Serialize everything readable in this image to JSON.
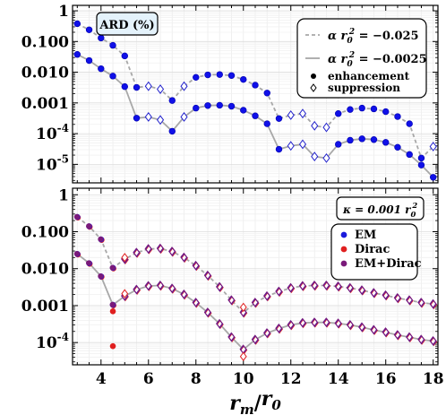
{
  "chart_data": [
    {
      "type": "line",
      "panel": "top",
      "badge": "ARD (%)",
      "y_scale": "log",
      "xlim": [
        2.8,
        18.2
      ],
      "ylim": [
        2.5e-06,
        1.5
      ],
      "y_ticks": [
        {
          "v": 1,
          "label": "1"
        },
        {
          "v": 0.1,
          "label": "0.100"
        },
        {
          "v": 0.01,
          "label": "0.010"
        },
        {
          "v": 0.001,
          "label": "0.001"
        },
        {
          "v": 0.0001,
          "label": "10",
          "exp": "-4"
        },
        {
          "v": 1e-05,
          "label": "10",
          "exp": "-5"
        }
      ],
      "grid": true,
      "legend_position": "top-right",
      "legend": {
        "dashed_label_lhs": "α r",
        "dashed_label_rhs": " = −0.025",
        "solid_label_lhs": "α r",
        "solid_label_rhs": " = −0.0025",
        "sub": "0",
        "sup": "2",
        "filled_label": "enhancement",
        "open_label": "suppression"
      },
      "series": [
        {
          "style": "dashed",
          "points": [
            [
              3,
              0.38,
              "e"
            ],
            [
              3.5,
              0.24,
              "e"
            ],
            [
              4,
              0.13,
              "e"
            ],
            [
              4.5,
              0.075,
              "e"
            ],
            [
              5,
              0.034,
              "e"
            ],
            [
              5.5,
              0.0032,
              "e"
            ],
            [
              6,
              0.0035,
              "s"
            ],
            [
              6.5,
              0.0028,
              "s"
            ],
            [
              7,
              0.0012,
              "e"
            ],
            [
              7.5,
              0.0035,
              "s"
            ],
            [
              8,
              0.0068,
              "e"
            ],
            [
              8.5,
              0.0082,
              "e"
            ],
            [
              9,
              0.0084,
              "e"
            ],
            [
              9.5,
              0.0078,
              "e"
            ],
            [
              10,
              0.0058,
              "e"
            ],
            [
              10.5,
              0.0038,
              "e"
            ],
            [
              11,
              0.0021,
              "e"
            ],
            [
              11.5,
              0.00031,
              "e"
            ],
            [
              12,
              0.0004,
              "s"
            ],
            [
              12.5,
              0.00045,
              "s"
            ],
            [
              13,
              0.00018,
              "s"
            ],
            [
              13.5,
              0.00016,
              "s"
            ],
            [
              14,
              0.00045,
              "e"
            ],
            [
              14.5,
              0.00061,
              "e"
            ],
            [
              15,
              0.00068,
              "e"
            ],
            [
              15.5,
              0.00064,
              "e"
            ],
            [
              16,
              0.00052,
              "e"
            ],
            [
              16.5,
              0.00036,
              "e"
            ],
            [
              17,
              0.00021,
              "e"
            ],
            [
              17.5,
              1.6e-05,
              "e"
            ],
            [
              18,
              3.8e-05,
              "s"
            ]
          ]
        },
        {
          "style": "solid",
          "points": [
            [
              3,
              0.038,
              "e"
            ],
            [
              3.5,
              0.024,
              "e"
            ],
            [
              4,
              0.013,
              "e"
            ],
            [
              4.5,
              0.0075,
              "e"
            ],
            [
              5,
              0.0034,
              "e"
            ],
            [
              5.5,
              0.00032,
              "e"
            ],
            [
              6,
              0.00035,
              "s"
            ],
            [
              6.5,
              0.00028,
              "s"
            ],
            [
              7,
              0.00012,
              "e"
            ],
            [
              7.5,
              0.00035,
              "s"
            ],
            [
              8,
              0.00068,
              "e"
            ],
            [
              8.5,
              0.00082,
              "e"
            ],
            [
              9,
              0.00084,
              "e"
            ],
            [
              9.5,
              0.00078,
              "e"
            ],
            [
              10,
              0.00058,
              "e"
            ],
            [
              10.5,
              0.00038,
              "e"
            ],
            [
              11,
              0.00021,
              "e"
            ],
            [
              11.5,
              3.1e-05,
              "e"
            ],
            [
              12,
              4e-05,
              "s"
            ],
            [
              12.5,
              4.5e-05,
              "s"
            ],
            [
              13,
              1.8e-05,
              "s"
            ],
            [
              13.5,
              1.6e-05,
              "s"
            ],
            [
              14,
              4.5e-05,
              "e"
            ],
            [
              14.5,
              6.1e-05,
              "e"
            ],
            [
              15,
              6.8e-05,
              "e"
            ],
            [
              15.5,
              6.4e-05,
              "e"
            ],
            [
              16,
              5.2e-05,
              "e"
            ],
            [
              16.5,
              3.6e-05,
              "e"
            ],
            [
              17,
              2.1e-05,
              "e"
            ],
            [
              17.5,
              9.5e-06,
              "e"
            ],
            [
              18,
              3.8e-06,
              "e"
            ]
          ]
        }
      ]
    },
    {
      "type": "line",
      "panel": "bottom",
      "y_scale": "log",
      "xlim": [
        2.8,
        18.2
      ],
      "ylim": [
        2.5e-05,
        1.5
      ],
      "y_ticks": [
        {
          "v": 1,
          "label": "1"
        },
        {
          "v": 0.1,
          "label": "0.100"
        },
        {
          "v": 0.01,
          "label": "0.010"
        },
        {
          "v": 0.001,
          "label": "0.001"
        },
        {
          "v": 0.0001,
          "label": "10",
          "exp": "-4"
        }
      ],
      "x_ticks": [
        4,
        6,
        8,
        10,
        12,
        14,
        16,
        18
      ],
      "xlabel_main": "r",
      "xlabel_sub": "m",
      "xlabel_den": "r",
      "xlabel_den_sub": "0",
      "grid": true,
      "legend_position": "top-right",
      "kappa_box": {
        "lhs": "κ = 0.001 r",
        "sub": "0",
        "sup": "2"
      },
      "legend": [
        {
          "name": "EM",
          "color": "#1a1adb"
        },
        {
          "name": "Dirac",
          "color": "#e02020"
        },
        {
          "name": "EM+Dirac",
          "color": "#7a1a7a"
        }
      ],
      "series": [
        {
          "style": "dashed",
          "points": [
            [
              3,
              0.25,
              "f"
            ],
            [
              3.5,
              0.14,
              "f"
            ],
            [
              4,
              0.062,
              "f"
            ],
            [
              4.5,
              0.0105,
              "f"
            ],
            [
              5,
              0.018,
              "o"
            ],
            [
              5.5,
              0.027,
              "o"
            ],
            [
              6,
              0.034,
              "o"
            ],
            [
              6.5,
              0.035,
              "o"
            ],
            [
              7,
              0.029,
              "o"
            ],
            [
              7.5,
              0.02,
              "o"
            ],
            [
              8,
              0.012,
              "o"
            ],
            [
              8.5,
              0.0065,
              "o"
            ],
            [
              9,
              0.0032,
              "o"
            ],
            [
              9.5,
              0.0014,
              "o"
            ],
            [
              10,
              0.00065,
              "o"
            ],
            [
              10.5,
              0.0012,
              "o"
            ],
            [
              11,
              0.0018,
              "o"
            ],
            [
              11.5,
              0.0024,
              "o"
            ],
            [
              12,
              0.003,
              "o"
            ],
            [
              12.5,
              0.0034,
              "o"
            ],
            [
              13,
              0.0035,
              "o"
            ],
            [
              13.5,
              0.0035,
              "o"
            ],
            [
              14,
              0.0033,
              "o"
            ],
            [
              14.5,
              0.003,
              "o"
            ],
            [
              15,
              0.0026,
              "o"
            ],
            [
              15.5,
              0.0022,
              "o"
            ],
            [
              16,
              0.0019,
              "o"
            ],
            [
              16.5,
              0.0016,
              "o"
            ],
            [
              17,
              0.0014,
              "o"
            ],
            [
              17.5,
              0.0012,
              "o"
            ],
            [
              18,
              0.0011,
              "o"
            ]
          ]
        },
        {
          "style": "solid",
          "points": [
            [
              3,
              0.025,
              "f"
            ],
            [
              3.5,
              0.014,
              "f"
            ],
            [
              4,
              0.0062,
              "f"
            ],
            [
              4.5,
              0.00105,
              "f"
            ],
            [
              5,
              0.0018,
              "o"
            ],
            [
              5.5,
              0.0027,
              "o"
            ],
            [
              6,
              0.0034,
              "o"
            ],
            [
              6.5,
              0.0035,
              "o"
            ],
            [
              7,
              0.0029,
              "o"
            ],
            [
              7.5,
              0.002,
              "o"
            ],
            [
              8,
              0.0012,
              "o"
            ],
            [
              8.5,
              0.00065,
              "o"
            ],
            [
              9,
              0.00032,
              "o"
            ],
            [
              9.5,
              0.00014,
              "o"
            ],
            [
              10,
              6.5e-05,
              "o"
            ],
            [
              10.5,
              0.00012,
              "o"
            ],
            [
              11,
              0.00018,
              "o"
            ],
            [
              11.5,
              0.00024,
              "o"
            ],
            [
              12,
              0.0003,
              "o"
            ],
            [
              12.5,
              0.00034,
              "o"
            ],
            [
              13,
              0.00035,
              "o"
            ],
            [
              13.5,
              0.00035,
              "o"
            ],
            [
              14,
              0.00033,
              "o"
            ],
            [
              14.5,
              0.0003,
              "o"
            ],
            [
              15,
              0.00026,
              "o"
            ],
            [
              15.5,
              0.00022,
              "o"
            ],
            [
              16,
              0.00019,
              "o"
            ],
            [
              16.5,
              0.00016,
              "o"
            ],
            [
              17,
              0.00014,
              "o"
            ],
            [
              17.5,
              0.00012,
              "o"
            ],
            [
              18,
              0.00011,
              "o"
            ]
          ]
        }
      ],
      "dirac_offsets": [
        [
          4.5,
          0.0007,
          8e-05
        ],
        [
          10,
          0.0009,
          4.2e-05
        ],
        [
          5,
          0.02,
          0.0021
        ]
      ]
    }
  ]
}
